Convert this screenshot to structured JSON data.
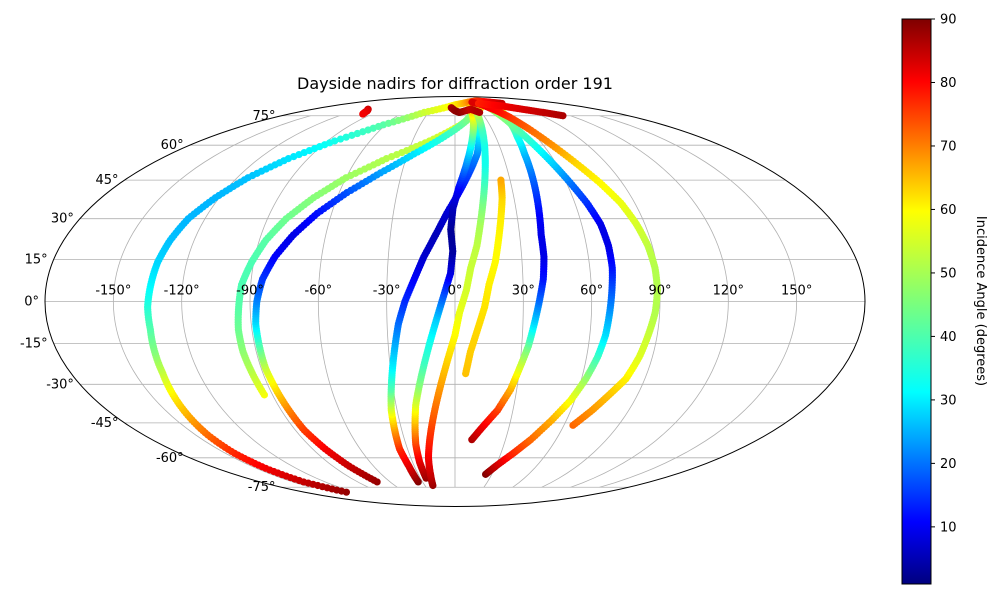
{
  "chart_data": {
    "type": "scatter",
    "projection": "mollweide",
    "title": "Dayside nadirs for diffraction order 191",
    "xlabel": "",
    "ylabel": "",
    "lon_ticks": [
      -150,
      -120,
      -90,
      -60,
      -30,
      0,
      30,
      60,
      90,
      120,
      150
    ],
    "lat_ticks": [
      -75,
      -60,
      -45,
      -30,
      -15,
      0,
      15,
      30,
      45,
      60,
      75
    ],
    "lon_tick_labels": [
      "-150°",
      "-120°",
      "-90°",
      "-60°",
      "-30°",
      "0°",
      "30°",
      "60°",
      "90°",
      "120°",
      "150°"
    ],
    "lat_tick_labels": [
      "-75°",
      "-60°",
      "-45°",
      "-30°",
      "-15°",
      "0°",
      "15°",
      "30°",
      "45°",
      "60°",
      "75°"
    ],
    "grid": true,
    "colorbar": {
      "label": "Incidence Angle (degrees)",
      "colormap": "jet",
      "range": [
        1,
        90
      ],
      "ticks": [
        10,
        20,
        30,
        40,
        50,
        60,
        70,
        80,
        90
      ],
      "tick_labels": [
        "10",
        "20",
        "30",
        "40",
        "50",
        "60",
        "70",
        "80",
        "90"
      ]
    },
    "series": [
      {
        "points": [
          [
            -130,
            -78,
            88
          ],
          [
            -140,
            -72,
            84
          ],
          [
            -143,
            -65,
            80
          ],
          [
            -144,
            -58,
            76
          ],
          [
            -143,
            -50,
            70
          ],
          [
            -141,
            -42,
            64
          ],
          [
            -139,
            -34,
            58
          ],
          [
            -137,
            -26,
            52
          ],
          [
            -136,
            -18,
            46
          ],
          [
            -135,
            -10,
            42
          ],
          [
            -135,
            -2,
            38
          ],
          [
            -134,
            6,
            34
          ],
          [
            -133,
            14,
            31
          ],
          [
            -131,
            22,
            29
          ],
          [
            -128,
            30,
            28
          ],
          [
            -122,
            38,
            28
          ],
          [
            -114,
            46,
            29
          ],
          [
            -102,
            54,
            32
          ],
          [
            -85,
            62,
            36
          ],
          [
            -62,
            70,
            42
          ],
          [
            -35,
            77,
            52
          ],
          [
            0,
            82,
            58
          ],
          [
            25,
            84,
            66
          ],
          [
            45,
            85,
            74
          ],
          [
            65,
            84,
            80
          ],
          [
            80,
            83,
            84
          ]
        ]
      },
      {
        "points": [
          [
            -110,
            79,
            84
          ],
          [
            -105,
            78,
            82
          ],
          [
            -100,
            76,
            80
          ]
        ]
      },
      {
        "points": [
          [
            -94,
            -34,
            56
          ],
          [
            -95,
            -26,
            51
          ],
          [
            -96,
            -18,
            47
          ],
          [
            -96,
            -10,
            44
          ],
          [
            -95,
            -2,
            42
          ],
          [
            -94,
            6,
            41
          ],
          [
            -91,
            14,
            41
          ],
          [
            -87,
            22,
            42
          ],
          [
            -81,
            30,
            44
          ],
          [
            -72,
            38,
            46
          ],
          [
            -60,
            46,
            48
          ],
          [
            -42,
            54,
            50
          ],
          [
            -18,
            62,
            52
          ],
          [
            5,
            70,
            54
          ],
          [
            20,
            76,
            56
          ],
          [
            35,
            80,
            58
          ]
        ]
      },
      {
        "points": [
          [
            -72,
            -72,
            88
          ],
          [
            -78,
            -64,
            84
          ],
          [
            -82,
            -56,
            80
          ],
          [
            -85,
            -48,
            74
          ],
          [
            -86,
            -40,
            68
          ],
          [
            -87,
            -32,
            60
          ],
          [
            -88,
            -24,
            52
          ],
          [
            -88,
            -16,
            42
          ],
          [
            -88,
            -8,
            32
          ],
          [
            -87,
            0,
            24
          ],
          [
            -85,
            8,
            17
          ],
          [
            -81,
            16,
            12
          ],
          [
            -75,
            24,
            10
          ],
          [
            -67,
            32,
            13
          ],
          [
            -56,
            40,
            19
          ],
          [
            -42,
            48,
            26
          ],
          [
            -26,
            56,
            32
          ],
          [
            -8,
            64,
            38
          ],
          [
            10,
            72,
            44
          ],
          [
            22,
            78,
            48
          ]
        ]
      },
      {
        "points": [
          [
            -34,
            -72,
            90
          ],
          [
            -34,
            -64,
            82
          ],
          [
            -35,
            -56,
            76
          ],
          [
            -34,
            -48,
            66
          ],
          [
            -33,
            -40,
            54
          ],
          [
            -31,
            -32,
            42
          ],
          [
            -29,
            -24,
            34
          ],
          [
            -27,
            -16,
            28
          ],
          [
            -25,
            -8,
            22
          ],
          [
            -22,
            0,
            16
          ],
          [
            -18,
            8,
            12
          ],
          [
            -14,
            16,
            8
          ],
          [
            -9,
            24,
            6
          ],
          [
            -4,
            32,
            8
          ],
          [
            2,
            40,
            12
          ],
          [
            8,
            48,
            18
          ],
          [
            14,
            56,
            24
          ],
          [
            18,
            64,
            32
          ],
          [
            22,
            72,
            42
          ],
          [
            26,
            80,
            54
          ]
        ]
      },
      {
        "points": [
          [
            -25,
            -70,
            88
          ],
          [
            -25,
            -62,
            82
          ],
          [
            -24,
            -54,
            74
          ],
          [
            -22,
            -46,
            64
          ],
          [
            -20,
            -38,
            54
          ],
          [
            -17,
            -30,
            46
          ],
          [
            -14,
            -22,
            40
          ],
          [
            -11,
            -14,
            36
          ],
          [
            -8,
            -6,
            30
          ],
          [
            -5,
            2,
            20
          ],
          [
            -2,
            10,
            10
          ],
          [
            -1,
            18,
            4
          ],
          [
            -2,
            26,
            3
          ],
          [
            -1,
            34,
            6
          ],
          [
            2,
            42,
            12
          ],
          [
            6,
            50,
            22
          ],
          [
            10,
            58,
            32
          ],
          [
            14,
            66,
            44
          ],
          [
            18,
            74,
            55
          ],
          [
            20,
            80,
            62
          ]
        ]
      },
      {
        "points": [
          [
            -22,
            -74,
            88
          ],
          [
            -20,
            -68,
            84
          ],
          [
            -18,
            -60,
            80
          ],
          [
            -15,
            -52,
            76
          ],
          [
            -12,
            -44,
            72
          ],
          [
            -9,
            -36,
            68
          ],
          [
            -6,
            -28,
            64
          ],
          [
            -3,
            -20,
            60
          ],
          [
            0,
            -12,
            57
          ],
          [
            2,
            -4,
            55
          ],
          [
            5,
            4,
            53
          ],
          [
            7,
            12,
            52
          ],
          [
            10,
            20,
            51
          ],
          [
            12,
            28,
            49
          ],
          [
            14,
            36,
            45
          ],
          [
            16,
            44,
            40
          ],
          [
            18,
            52,
            36
          ],
          [
            20,
            60,
            36
          ],
          [
            22,
            68,
            40
          ],
          [
            24,
            76,
            50
          ]
        ]
      },
      {
        "points": [
          [
            5,
            -26,
            62
          ],
          [
            7,
            -18,
            61
          ],
          [
            10,
            -10,
            60
          ],
          [
            13,
            -2,
            59
          ],
          [
            15,
            6,
            58
          ],
          [
            18,
            14,
            57
          ],
          [
            20,
            22,
            57
          ],
          [
            22,
            30,
            58
          ],
          [
            24,
            38,
            60
          ],
          [
            25,
            45,
            64
          ]
        ]
      },
      {
        "points": [
          [
            10,
            -52,
            86
          ],
          [
            16,
            -46,
            80
          ],
          [
            22,
            -40,
            74
          ],
          [
            27,
            -32,
            64
          ],
          [
            30,
            -24,
            54
          ],
          [
            33,
            -16,
            44
          ],
          [
            35,
            -8,
            32
          ],
          [
            37,
            0,
            22
          ],
          [
            39,
            8,
            14
          ],
          [
            40,
            16,
            10
          ],
          [
            40,
            24,
            10
          ],
          [
            41,
            32,
            12
          ],
          [
            42,
            40,
            17
          ],
          [
            43,
            48,
            22
          ],
          [
            44,
            56,
            28
          ],
          [
            46,
            64,
            36
          ],
          [
            50,
            72,
            46
          ],
          [
            55,
            78,
            54
          ]
        ]
      },
      {
        "points": [
          [
            25,
            -68,
            90
          ],
          [
            30,
            -64,
            84
          ],
          [
            38,
            -58,
            76
          ],
          [
            45,
            -52,
            70
          ],
          [
            52,
            -44,
            64
          ],
          [
            58,
            -36,
            56
          ],
          [
            62,
            -28,
            48
          ],
          [
            65,
            -20,
            40
          ],
          [
            67,
            -12,
            32
          ],
          [
            68,
            -4,
            26
          ],
          [
            69,
            4,
            20
          ],
          [
            70,
            12,
            14
          ],
          [
            70,
            20,
            10
          ],
          [
            69,
            28,
            10
          ],
          [
            66,
            36,
            16
          ],
          [
            62,
            44,
            22
          ],
          [
            58,
            52,
            30
          ],
          [
            54,
            60,
            36
          ],
          [
            50,
            68,
            42
          ],
          [
            48,
            74,
            46
          ],
          [
            46,
            80,
            48
          ]
        ]
      },
      {
        "points": [
          [
            65,
            -46,
            70
          ],
          [
            71,
            -40,
            66
          ],
          [
            76,
            -34,
            62
          ],
          [
            81,
            -28,
            58
          ],
          [
            84,
            -20,
            54
          ],
          [
            86,
            -12,
            52
          ],
          [
            88,
            -4,
            50
          ],
          [
            89,
            4,
            50
          ],
          [
            89,
            12,
            50
          ],
          [
            88,
            20,
            51
          ],
          [
            86,
            28,
            53
          ],
          [
            83,
            36,
            55
          ],
          [
            78,
            44,
            57
          ],
          [
            72,
            52,
            60
          ],
          [
            66,
            60,
            66
          ],
          [
            60,
            68,
            70
          ],
          [
            55,
            74,
            74
          ],
          [
            50,
            78,
            78
          ],
          [
            42,
            82,
            80
          ],
          [
            32,
            84,
            82
          ]
        ]
      },
      {
        "points": [
          [
            40,
            83,
            76
          ],
          [
            55,
            82,
            78
          ],
          [
            70,
            81,
            80
          ],
          [
            85,
            79,
            82
          ],
          [
            100,
            77,
            84
          ],
          [
            112,
            75,
            86
          ]
        ]
      },
      {
        "points": [
          [
            -5,
            80,
            86
          ],
          [
            0,
            78,
            88
          ],
          [
            5,
            77,
            89
          ],
          [
            20,
            79,
            84
          ],
          [
            28,
            77,
            86
          ]
        ]
      }
    ]
  }
}
